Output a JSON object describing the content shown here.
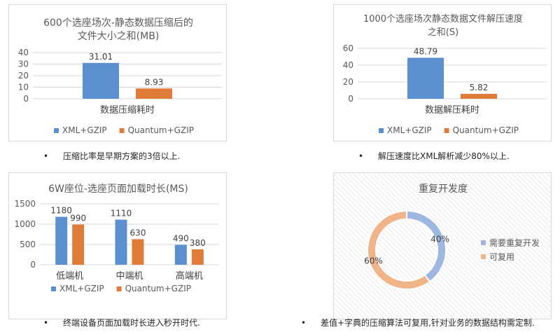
{
  "colors": {
    "xml": "#5b8fd0",
    "quantum": "#e07b39",
    "donut_a": "#9db7e0",
    "donut_b": "#f0b489"
  },
  "bullet_marker": "•",
  "bullets": [
    "压缩比率是早期方案的3倍以上.",
    "解压速度比XML解析减少80%以上.",
    "终端设备页面加载时长进入秒开时代.",
    "差值+字典的压缩算法可复用,针对业务的数据结构需定制."
  ],
  "chart_data": [
    {
      "type": "bar",
      "title_lines": [
        "600个选座场次-静态数据压缩后的",
        "文件大小之和(MB)"
      ],
      "categories": [
        "数据压缩耗时"
      ],
      "series": [
        {
          "name": "XML+GZIP",
          "values": [
            31.01
          ]
        },
        {
          "name": "Quantum+GZIP",
          "values": [
            8.93
          ]
        }
      ],
      "ylim": [
        0,
        40
      ],
      "yticks": [
        0,
        10,
        20,
        30,
        40
      ],
      "grid": true,
      "legend_position": "bottom"
    },
    {
      "type": "bar",
      "title_lines": [
        "1000个选座场次静态数据文件解压速度",
        "之和(S)"
      ],
      "categories": [
        "数据解压耗时"
      ],
      "series": [
        {
          "name": "XML+GZIP",
          "values": [
            48.79
          ]
        },
        {
          "name": "Quantum+GZIP",
          "values": [
            5.82
          ]
        }
      ],
      "ylim": [
        0,
        60
      ],
      "yticks": [
        0,
        20,
        40,
        60
      ],
      "grid": true,
      "legend_position": "bottom"
    },
    {
      "type": "bar",
      "title_lines": [
        "6W座位-选座页面加载时长(MS)"
      ],
      "categories": [
        "低端机",
        "中端机",
        "高端机"
      ],
      "series": [
        {
          "name": "XML+GZIP",
          "values": [
            1180,
            1110,
            490
          ]
        },
        {
          "name": "Quantum+GZIP",
          "values": [
            990,
            630,
            380
          ]
        }
      ],
      "ylim": [
        0,
        1500
      ],
      "yticks": [
        0,
        500,
        1000,
        1500
      ],
      "grid": true,
      "legend_position": "bottom"
    },
    {
      "type": "pie",
      "donut": true,
      "title_lines": [
        "重复开发度"
      ],
      "slices": [
        {
          "name": "需要重复开发",
          "value": 40,
          "label": "40%"
        },
        {
          "name": "可复用",
          "value": 60,
          "label": "60%"
        }
      ],
      "legend_position": "right"
    }
  ]
}
